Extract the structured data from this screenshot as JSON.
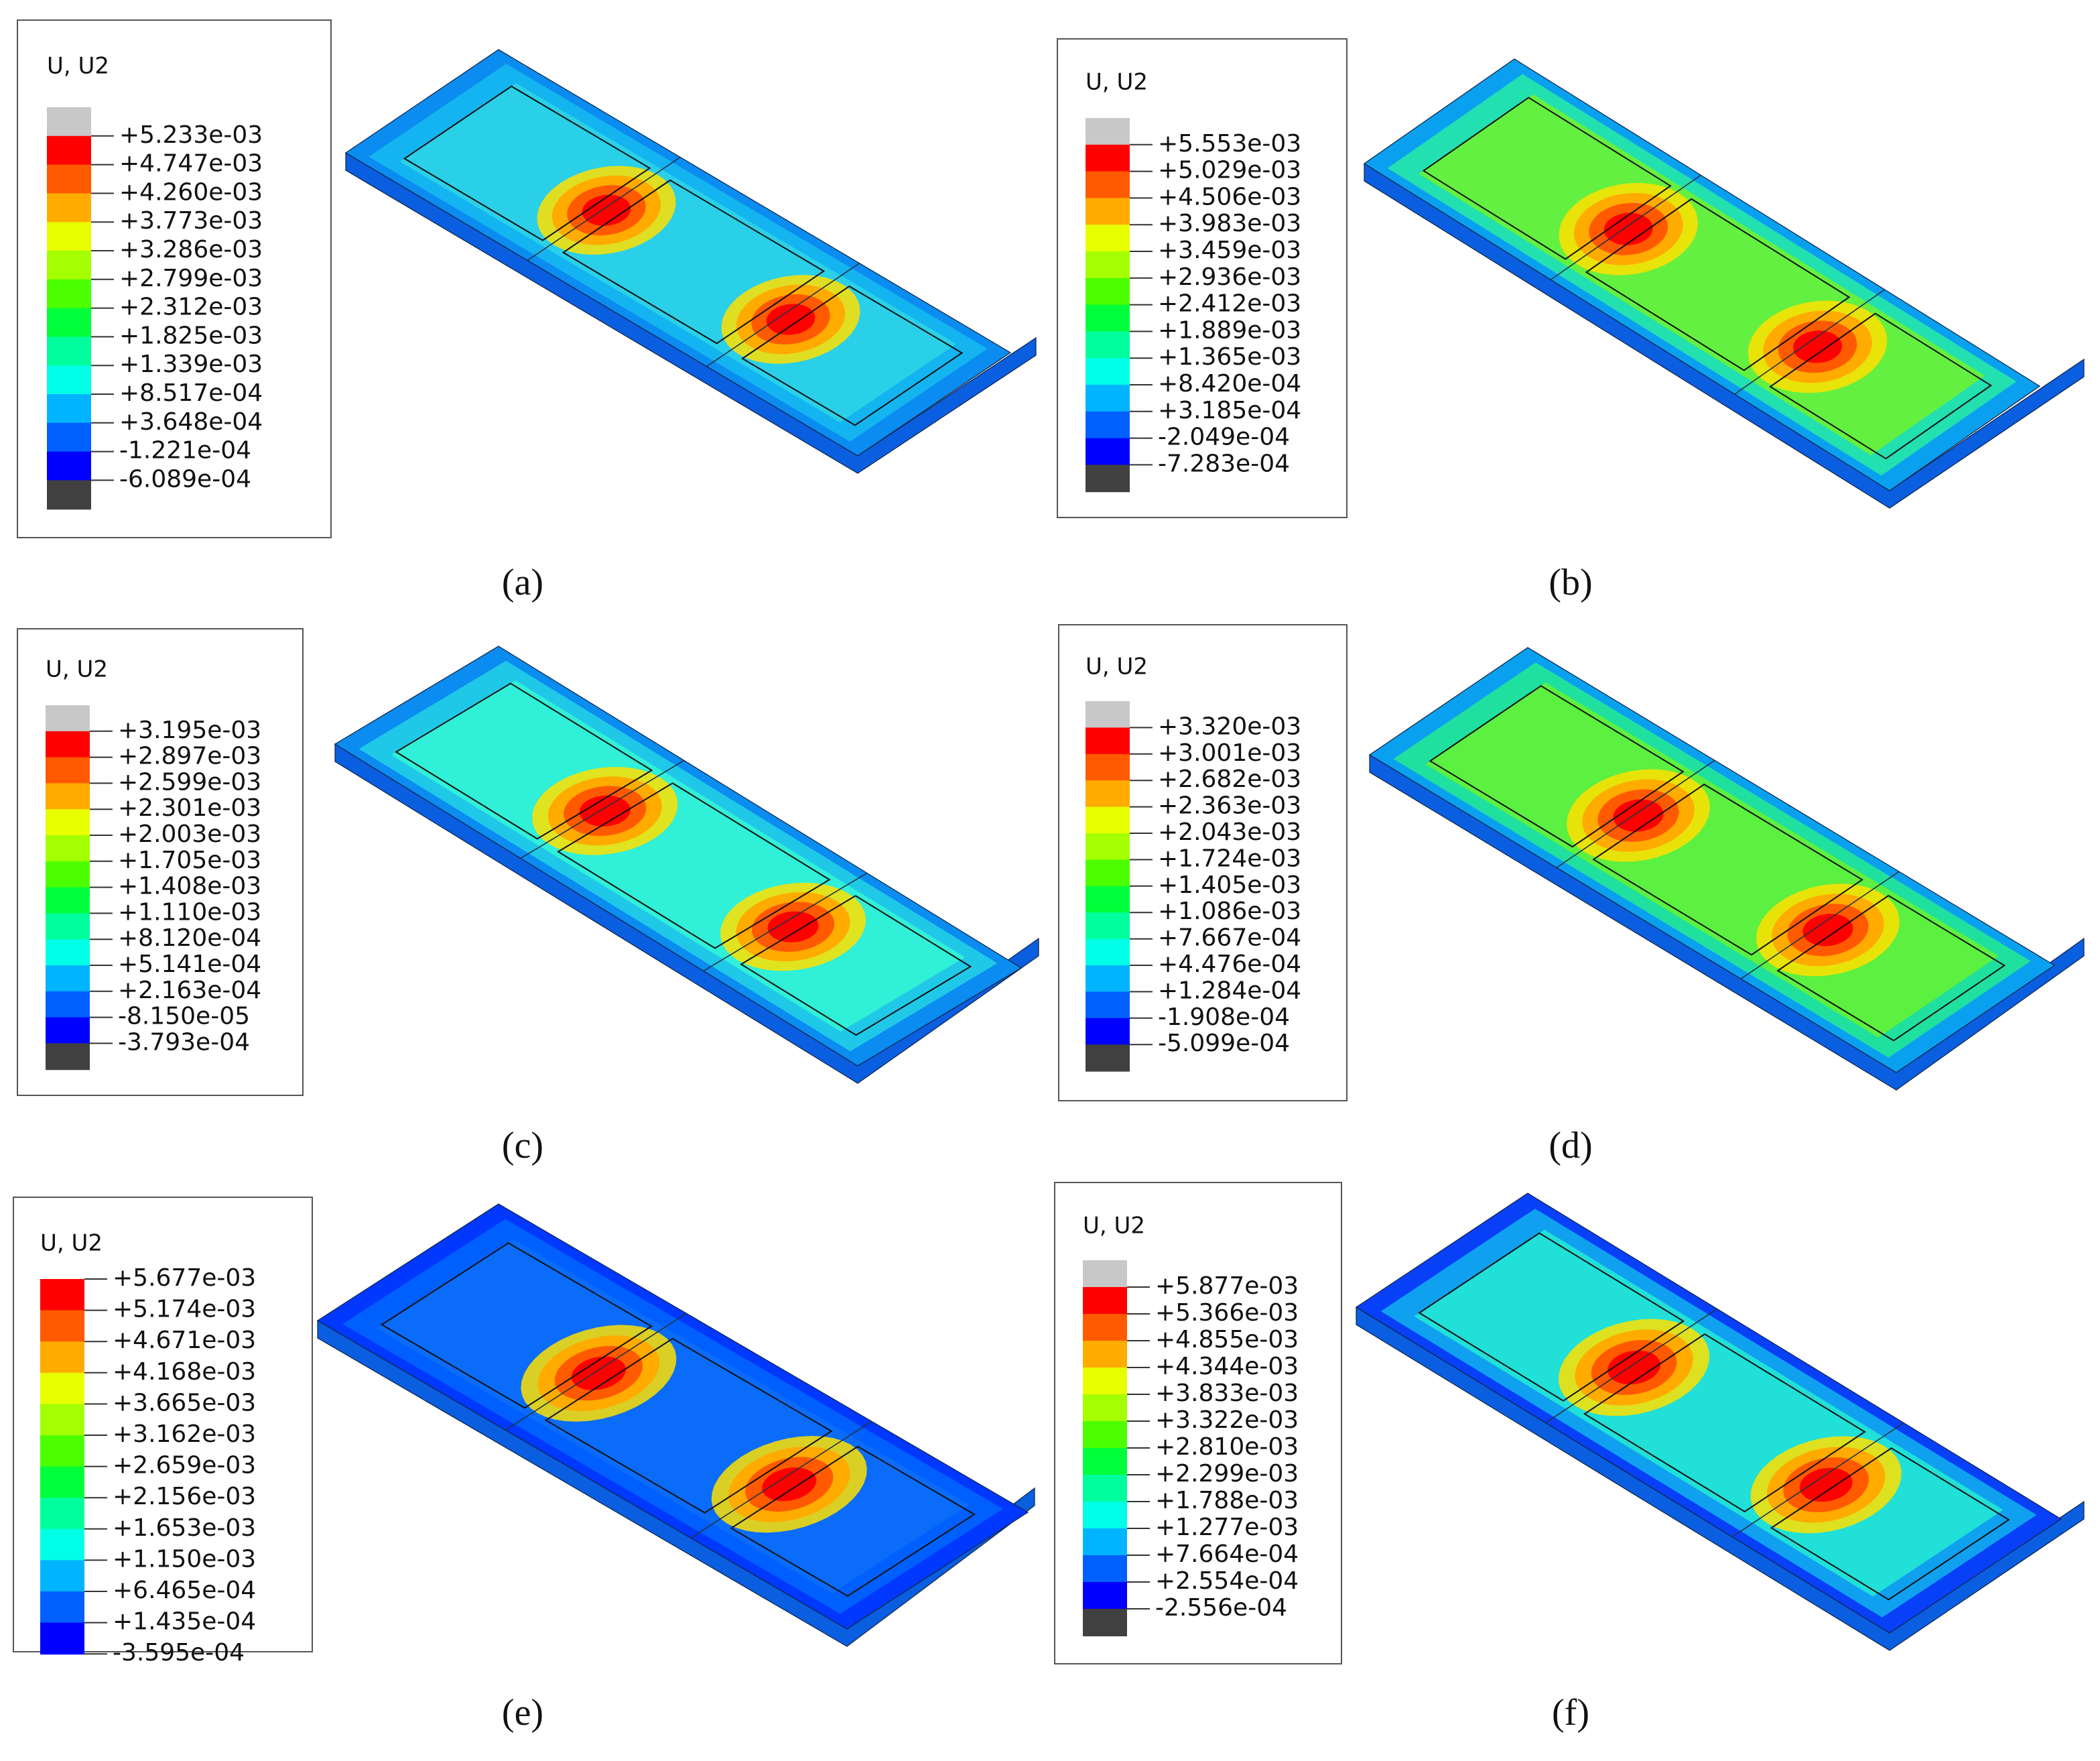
{
  "panels": [
    {
      "caption": "(a)",
      "legend_title": "U, U2",
      "levels": [
        "+5.233e-03",
        "+4.747e-03",
        "+4.260e-03",
        "+3.773e-03",
        "+3.286e-03",
        "+2.799e-03",
        "+2.312e-03",
        "+1.825e-03",
        "+1.339e-03",
        "+8.517e-04",
        "+3.648e-04",
        "-1.221e-04",
        "-6.089e-04"
      ]
    },
    {
      "caption": "(b)",
      "legend_title": "U, U2",
      "levels": [
        "+5.553e-03",
        "+5.029e-03",
        "+4.506e-03",
        "+3.983e-03",
        "+3.459e-03",
        "+2.936e-03",
        "+2.412e-03",
        "+1.889e-03",
        "+1.365e-03",
        "+8.420e-04",
        "+3.185e-04",
        "-2.049e-04",
        "-7.283e-04"
      ]
    },
    {
      "caption": "(c)",
      "legend_title": "U, U2",
      "levels": [
        "+3.195e-03",
        "+2.897e-03",
        "+2.599e-03",
        "+2.301e-03",
        "+2.003e-03",
        "+1.705e-03",
        "+1.408e-03",
        "+1.110e-03",
        "+8.120e-04",
        "+5.141e-04",
        "+2.163e-04",
        "-8.150e-05",
        "-3.793e-04"
      ]
    },
    {
      "caption": "(d)",
      "legend_title": "U, U2",
      "levels": [
        "+3.320e-03",
        "+3.001e-03",
        "+2.682e-03",
        "+2.363e-03",
        "+2.043e-03",
        "+1.724e-03",
        "+1.405e-03",
        "+1.086e-03",
        "+7.667e-04",
        "+4.476e-04",
        "+1.284e-04",
        "-1.908e-04",
        "-5.099e-04"
      ]
    },
    {
      "caption": "(e)",
      "legend_title": "U, U2",
      "levels": [
        "+5.677e-03",
        "+5.174e-03",
        "+4.671e-03",
        "+4.168e-03",
        "+3.665e-03",
        "+3.162e-03",
        "+2.659e-03",
        "+2.156e-03",
        "+1.653e-03",
        "+1.150e-03",
        "+6.465e-04",
        "+1.435e-04",
        "-3.595e-04"
      ]
    },
    {
      "caption": "(f)",
      "legend_title": "U, U2",
      "levels": [
        "+5.877e-03",
        "+5.366e-03",
        "+4.855e-03",
        "+4.344e-03",
        "+3.833e-03",
        "+3.322e-03",
        "+2.810e-03",
        "+2.299e-03",
        "+1.788e-03",
        "+1.277e-03",
        "+7.664e-04",
        "+2.554e-04",
        "-2.556e-04"
      ]
    }
  ]
}
